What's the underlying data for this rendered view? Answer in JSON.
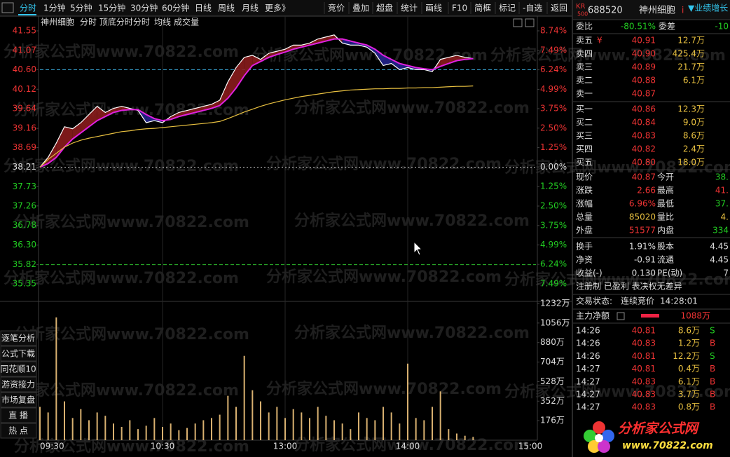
{
  "toolbar": {
    "periods": [
      "分时",
      "1分钟",
      "5分钟",
      "15分钟",
      "30分钟",
      "60分钟",
      "日线",
      "周线",
      "月线",
      "更多》"
    ],
    "tools": [
      "竞价",
      "叠加",
      "超盘",
      "统计",
      "画线",
      "F10",
      "简框",
      "标记",
      "-自选",
      "返回"
    ]
  },
  "watermark": "分析家公式网www.70822.com",
  "chart_data": [
    {
      "type": "line",
      "title": "神州细胞",
      "subtitle": "分时 顶底分时分时",
      "x": [
        0,
        4,
        8,
        12,
        16,
        20,
        24,
        28,
        32,
        36,
        40,
        44,
        48,
        52,
        56,
        60,
        64,
        68,
        72,
        76,
        80,
        84,
        88,
        92,
        96,
        100,
        104,
        108,
        112,
        116,
        120,
        124,
        128,
        132,
        136,
        140,
        144,
        148,
        152,
        156,
        160,
        164,
        168,
        172,
        176,
        180,
        184,
        188,
        192,
        196,
        200,
        204,
        208,
        212
      ],
      "xlim": [
        0,
        240
      ],
      "xticks": [
        {
          "value": 0,
          "label": "09:30"
        },
        {
          "value": 60,
          "label": "10:30"
        },
        {
          "value": 120,
          "label": "13:00"
        },
        {
          "value": 180,
          "label": "14:00"
        },
        {
          "value": 240,
          "label": "15:00"
        }
      ],
      "ylim": [
        35.35,
        41.55
      ],
      "yticks": [
        41.55,
        41.07,
        {
          "value": 40.6,
          "label": "40.60"
        },
        40.12,
        39.64,
        39.16,
        38.69,
        38.21,
        37.73,
        37.26,
        36.78,
        {
          "value": 36.3,
          "label": "36.30"
        },
        35.82,
        35.35
      ],
      "y2lim": [
        -7.49,
        8.74
      ],
      "y2ticks": [
        {
          "value": 8.74,
          "label": "8.74%"
        },
        {
          "value": 7.49,
          "label": "7.49%"
        },
        {
          "value": 6.24,
          "label": "6.24%"
        },
        {
          "value": 4.99,
          "label": "4.99%"
        },
        {
          "value": 3.75,
          "label": "3.75%"
        },
        {
          "value": 2.5,
          "label": "2.50%"
        },
        {
          "value": 1.25,
          "label": "1.25%"
        },
        {
          "value": 0,
          "label": "0.00%"
        },
        {
          "value": -1.25,
          "label": "1.25%"
        },
        {
          "value": -2.5,
          "label": "2.50%"
        },
        {
          "value": -3.75,
          "label": "3.75%"
        },
        {
          "value": -4.99,
          "label": "4.99%"
        },
        {
          "value": -6.24,
          "label": "6.24%"
        },
        {
          "value": -7.49,
          "label": "7.49%"
        }
      ],
      "reference_lines": [
        40.6,
        38.21,
        35.82
      ],
      "fill_colors": {
        "up": "#8a1c1c",
        "down": "#24248c"
      },
      "series": [
        {
          "color": "#ffffff",
          "values": [
            38.21,
            38.45,
            38.8,
            39.2,
            39.15,
            39.3,
            39.5,
            39.7,
            39.55,
            39.65,
            39.7,
            39.65,
            39.6,
            39.3,
            39.35,
            39.3,
            39.45,
            39.55,
            39.6,
            39.65,
            39.7,
            39.75,
            39.85,
            40.3,
            40.65,
            40.9,
            40.95,
            40.85,
            41.0,
            41.05,
            41.1,
            41.2,
            41.2,
            41.25,
            41.35,
            41.4,
            41.45,
            41.25,
            41.2,
            41.2,
            41.15,
            41.0,
            40.7,
            40.75,
            40.6,
            40.65,
            40.6,
            40.6,
            40.55,
            40.85,
            40.9,
            40.95,
            40.9,
            40.87
          ]
        },
        {
          "color": "#e020e0",
          "values": [
            38.21,
            38.3,
            38.45,
            38.7,
            38.9,
            39.05,
            39.2,
            39.35,
            39.45,
            39.55,
            39.6,
            39.62,
            39.62,
            39.5,
            39.4,
            39.35,
            39.38,
            39.45,
            39.5,
            39.55,
            39.6,
            39.65,
            39.72,
            39.9,
            40.15,
            40.45,
            40.7,
            40.8,
            40.9,
            40.97,
            41.03,
            41.1,
            41.15,
            41.2,
            41.25,
            41.3,
            41.35,
            41.35,
            41.3,
            41.25,
            41.2,
            41.1,
            40.95,
            40.85,
            40.75,
            40.7,
            40.65,
            40.62,
            40.6,
            40.68,
            40.75,
            40.82,
            40.85,
            40.87
          ]
        },
        {
          "name": "均线",
          "color": "#e8c040",
          "values": [
            38.21,
            38.4,
            38.55,
            38.7,
            38.8,
            38.87,
            38.92,
            38.96,
            39.0,
            39.04,
            39.08,
            39.1,
            39.13,
            39.15,
            39.16,
            39.18,
            39.2,
            39.22,
            39.24,
            39.26,
            39.28,
            39.3,
            39.33,
            39.4,
            39.48,
            39.56,
            39.63,
            39.7,
            39.76,
            39.81,
            39.86,
            39.9,
            39.94,
            39.97,
            40.0,
            40.03,
            40.06,
            40.08,
            40.1,
            40.11,
            40.12,
            40.13,
            40.13,
            40.14,
            40.14,
            40.15,
            40.15,
            40.16,
            40.16,
            40.17,
            40.18,
            40.19,
            40.19,
            40.2
          ]
        }
      ]
    },
    {
      "type": "bar",
      "title": "成交量",
      "color": "#d8b070",
      "x": [
        0,
        4,
        8,
        12,
        16,
        20,
        24,
        28,
        32,
        36,
        40,
        44,
        48,
        52,
        56,
        60,
        64,
        68,
        72,
        76,
        80,
        84,
        88,
        92,
        96,
        100,
        104,
        108,
        112,
        116,
        120,
        124,
        128,
        132,
        136,
        140,
        144,
        148,
        152,
        156,
        160,
        164,
        168,
        172,
        176,
        180,
        184,
        188,
        192,
        196,
        200,
        204,
        208,
        212
      ],
      "xlim": [
        0,
        240
      ],
      "values": [
        300,
        250,
        1107,
        350,
        200,
        280,
        180,
        250,
        220,
        150,
        120,
        180,
        100,
        130,
        200,
        120,
        150,
        90,
        110,
        150,
        180,
        200,
        230,
        400,
        300,
        760,
        450,
        350,
        250,
        300,
        200,
        280,
        250,
        200,
        300,
        220,
        180,
        150,
        100,
        250,
        200,
        180,
        300,
        250,
        150,
        690,
        200,
        180,
        300,
        440,
        100,
        60,
        40,
        30
      ],
      "ylim": [
        0,
        1232
      ],
      "yticks": [
        {
          "value": 1232,
          "label": "1232万"
        },
        {
          "value": 1056,
          "label": "1056万"
        },
        {
          "value": 880,
          "label": "880万"
        },
        {
          "value": 704,
          "label": "704万"
        },
        {
          "value": 528,
          "label": "528万"
        },
        {
          "value": 352,
          "label": "352万"
        },
        {
          "value": 176,
          "label": "176万"
        }
      ]
    }
  ],
  "side_buttons": [
    "逐笔分析",
    "公式下载",
    "同花顺10",
    "游资接力",
    "市场复盘",
    "直  播",
    "热  点"
  ],
  "quote": {
    "badge": "KR",
    "badge_sub": "500",
    "code": "688520",
    "name": "神州细胞",
    "info": "i",
    "tag": "▼业绩增长",
    "ratio": [
      "委比",
      "-80.51%",
      "委差",
      "-10"
    ],
    "ask_mark": "¥",
    "asks": [
      [
        "卖五",
        "40.91",
        "12.7万"
      ],
      [
        "卖四",
        "40.90",
        "425.4万"
      ],
      [
        "卖三",
        "40.89",
        "21.7万"
      ],
      [
        "卖二",
        "40.88",
        "6.1万"
      ],
      [
        "卖一",
        "40.87",
        ""
      ]
    ],
    "bids": [
      [
        "买一",
        "40.86",
        "12.3万"
      ],
      [
        "买二",
        "40.84",
        "9.0万"
      ],
      [
        "买三",
        "40.83",
        "8.6万"
      ],
      [
        "买四",
        "40.82",
        "2.4万"
      ],
      [
        "买五",
        "40.80",
        "18.0万"
      ]
    ],
    "stats": [
      [
        "现价",
        "40.87",
        "今开",
        "38."
      ],
      [
        "涨跌",
        "2.66",
        "最高",
        "41."
      ],
      [
        "涨幅",
        "6.96%",
        "最低",
        "37."
      ],
      [
        "总量",
        "85020",
        "量比",
        "4."
      ],
      [
        "外盘",
        "51577",
        "内盘",
        "334"
      ],
      [
        "换手",
        "1.91%",
        "股本",
        "4.45"
      ],
      [
        "净资",
        "-0.91",
        "流通",
        "4.45"
      ],
      [
        "收益(-)",
        "0.130",
        "PE(动)",
        "7"
      ]
    ],
    "tags": "注册制 已盈利 表决权无差异",
    "status_label": "交易状态:",
    "status": "连续竞价",
    "time": "14:28:01",
    "flow_label": "主力净额",
    "flow": "1088万",
    "trades": [
      [
        "14:26",
        "40.81",
        "8.6万",
        "S"
      ],
      [
        "14:26",
        "40.83",
        "1.2万",
        "B"
      ],
      [
        "14:26",
        "40.81",
        "12.2万",
        "S"
      ],
      [
        "14:27",
        "40.81",
        "0.4万",
        "B"
      ],
      [
        "14:27",
        "40.83",
        "6.1万",
        "B"
      ],
      [
        "14:27",
        "40.83",
        "3.7万",
        "B"
      ],
      [
        "14:27",
        "40.83",
        "0.8万",
        "B"
      ]
    ]
  },
  "logo": {
    "title": "分析家公式网",
    "url": "www.70822.com"
  }
}
